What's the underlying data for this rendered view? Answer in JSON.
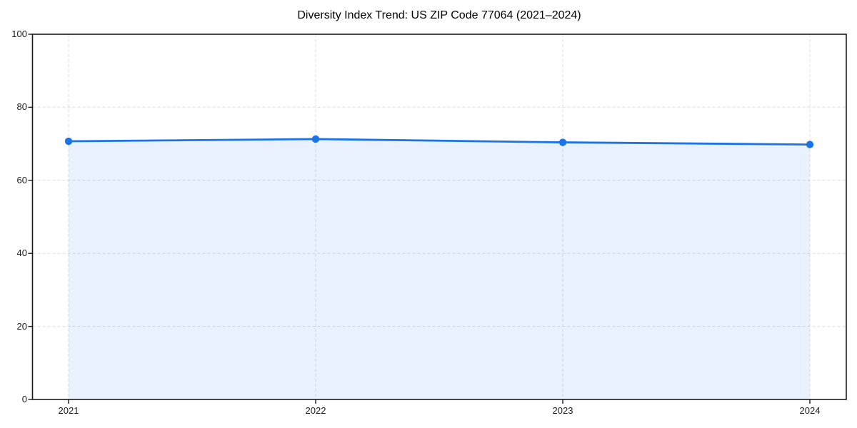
{
  "chart": {
    "title": "Diversity Index Trend: US ZIP Code 77064 (2021–2024)"
  },
  "chart_data": {
    "type": "area",
    "title": "Diversity Index Trend: US ZIP Code 77064 (2021–2024)",
    "categories": [
      "2021",
      "2022",
      "2023",
      "2024"
    ],
    "values": [
      70.7,
      71.3,
      70.4,
      69.8
    ],
    "xlabel": "",
    "ylabel": "",
    "ylim": [
      0,
      100
    ],
    "yticks": [
      0,
      20,
      40,
      60,
      80,
      100
    ],
    "grid": true,
    "grid_style": "dashed",
    "legend": false,
    "marker": "circle",
    "colors": {
      "line": "#1a73e8",
      "fill": "rgba(26,115,232,0.10)",
      "grid": "#dcdcdc",
      "spine": "#1a1a1a",
      "tick_label": "#1a1a1a",
      "background": "#ffffff"
    }
  }
}
